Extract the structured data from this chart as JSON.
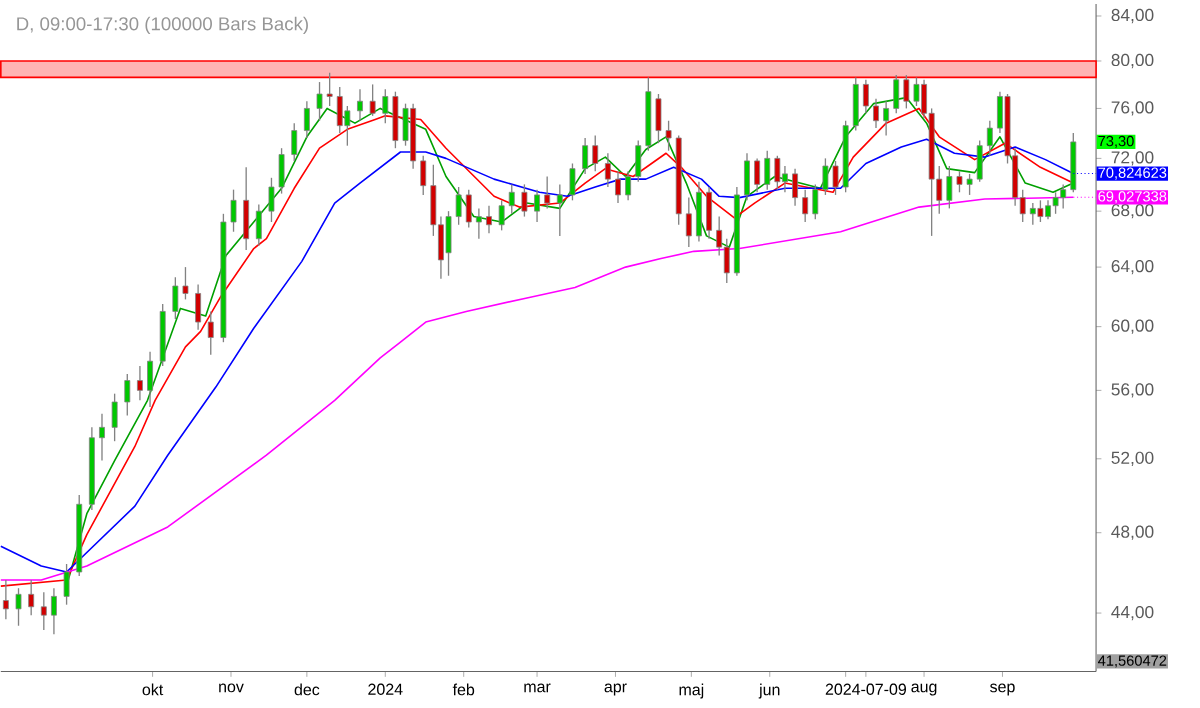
{
  "chart_data": {
    "type": "candlestick",
    "title": "D, 09:00-17:30 (100000 Bars Back)",
    "log": true,
    "x": [
      "2023-08-04",
      "2023-08-09",
      "2023-08-14",
      "2023-08-19",
      "2023-08-23",
      "2023-08-28",
      "2023-09-02",
      "2023-09-07",
      "2023-09-11",
      "2023-09-16",
      "2023-09-21",
      "2023-09-26",
      "2023-09-30",
      "2023-10-05",
      "2023-10-10",
      "2023-10-14",
      "2023-10-19",
      "2023-10-24",
      "2023-10-29",
      "2023-11-02",
      "2023-11-07",
      "2023-11-12",
      "2023-11-17",
      "2023-11-21",
      "2023-11-26",
      "2023-12-01",
      "2023-12-06",
      "2023-12-10",
      "2023-12-14",
      "2023-12-17",
      "2023-12-22",
      "2023-12-27",
      "2024-01-01",
      "2024-01-05",
      "2024-01-09",
      "2024-01-12",
      "2024-01-16",
      "2024-01-20",
      "2024-01-23",
      "2024-01-26",
      "2024-01-30",
      "2024-02-03",
      "2024-02-07",
      "2024-02-11",
      "2024-02-16",
      "2024-02-20",
      "2024-02-25",
      "2024-03-01",
      "2024-03-05",
      "2024-03-10",
      "2024-03-15",
      "2024-03-20",
      "2024-03-24",
      "2024-03-29",
      "2024-04-02",
      "2024-04-06",
      "2024-04-10",
      "2024-04-14",
      "2024-04-18",
      "2024-04-22",
      "2024-04-26",
      "2024-04-30",
      "2024-05-04",
      "2024-05-08",
      "2024-05-12",
      "2024-05-15",
      "2024-05-19",
      "2024-05-23",
      "2024-05-27",
      "2024-05-31",
      "2024-06-04",
      "2024-06-07",
      "2024-06-11",
      "2024-06-15",
      "2024-06-19",
      "2024-06-23",
      "2024-06-27",
      "2024-07-01",
      "2024-07-05",
      "2024-07-09",
      "2024-07-13",
      "2024-07-17",
      "2024-07-21",
      "2024-07-25",
      "2024-07-29",
      "2024-08-01",
      "2024-08-04",
      "2024-08-07",
      "2024-08-11",
      "2024-08-15",
      "2024-08-19",
      "2024-08-23",
      "2024-08-27",
      "2024-08-31",
      "2024-09-03",
      "2024-09-06",
      "2024-09-09",
      "2024-09-13",
      "2024-09-16",
      "2024-09-19",
      "2024-09-22",
      "2024-09-25",
      "2024-09-29"
    ],
    "ohlc": [
      [
        44.6,
        45.6,
        43.7,
        44.2
      ],
      [
        44.2,
        45.2,
        43.4,
        44.9
      ],
      [
        44.9,
        45.6,
        43.9,
        44.3
      ],
      [
        44.3,
        45.0,
        43.2,
        43.9
      ],
      [
        43.9,
        45.2,
        43.0,
        44.8
      ],
      [
        44.8,
        46.4,
        44.4,
        46.0
      ],
      [
        46.0,
        50.0,
        45.8,
        49.5
      ],
      [
        49.5,
        53.8,
        49.2,
        53.2
      ],
      [
        53.2,
        54.6,
        51.9,
        53.8
      ],
      [
        53.8,
        55.8,
        53.0,
        55.3
      ],
      [
        55.3,
        57.0,
        54.5,
        56.6
      ],
      [
        56.6,
        57.5,
        55.4,
        56.0
      ],
      [
        56.0,
        58.4,
        55.0,
        57.8
      ],
      [
        57.8,
        61.5,
        57.5,
        61.0
      ],
      [
        61.0,
        63.3,
        60.5,
        62.7
      ],
      [
        62.7,
        64.0,
        61.8,
        62.2
      ],
      [
        62.2,
        62.8,
        59.8,
        60.3
      ],
      [
        60.3,
        61.0,
        58.2,
        59.3
      ],
      [
        59.3,
        67.8,
        59.0,
        67.2
      ],
      [
        67.2,
        69.6,
        66.5,
        68.8
      ],
      [
        68.8,
        71.3,
        65.2,
        66.0
      ],
      [
        66.0,
        68.5,
        65.5,
        68.0
      ],
      [
        68.0,
        70.5,
        67.2,
        69.8
      ],
      [
        69.8,
        72.8,
        69.3,
        72.3
      ],
      [
        72.3,
        74.8,
        71.8,
        74.2
      ],
      [
        74.2,
        76.6,
        73.6,
        76.0
      ],
      [
        76.0,
        78.2,
        75.0,
        77.2
      ],
      [
        77.2,
        79.0,
        76.2,
        77.0
      ],
      [
        77.0,
        77.8,
        74.0,
        74.6
      ],
      [
        74.6,
        76.2,
        73.0,
        75.8
      ],
      [
        75.8,
        77.6,
        75.0,
        76.6
      ],
      [
        76.6,
        78.0,
        75.4,
        75.6
      ],
      [
        75.6,
        77.6,
        74.8,
        77.0
      ],
      [
        77.0,
        77.4,
        72.8,
        73.4
      ],
      [
        73.4,
        76.4,
        73.0,
        76.0
      ],
      [
        76.0,
        76.4,
        71.2,
        71.8
      ],
      [
        71.8,
        72.2,
        69.2,
        69.9
      ],
      [
        69.9,
        71.5,
        66.2,
        67.0
      ],
      [
        67.0,
        67.6,
        63.2,
        64.5
      ],
      [
        65.0,
        68.0,
        63.4,
        67.6
      ],
      [
        67.6,
        69.8,
        67.0,
        69.2
      ],
      [
        69.2,
        69.6,
        66.8,
        67.2
      ],
      [
        67.2,
        68.2,
        66.0,
        67.6
      ],
      [
        67.6,
        68.4,
        66.4,
        67.0
      ],
      [
        67.0,
        68.8,
        66.6,
        68.4
      ],
      [
        68.4,
        70.0,
        67.8,
        69.4
      ],
      [
        69.4,
        70.0,
        67.6,
        68.0
      ],
      [
        68.0,
        69.6,
        67.2,
        69.2
      ],
      [
        69.2,
        70.6,
        68.2,
        68.6
      ],
      [
        68.6,
        70.0,
        66.2,
        69.2
      ],
      [
        69.2,
        71.6,
        68.8,
        71.2
      ],
      [
        71.2,
        73.6,
        70.8,
        73.0
      ],
      [
        73.0,
        73.8,
        71.0,
        71.6
      ],
      [
        71.6,
        72.4,
        69.8,
        70.4
      ],
      [
        70.4,
        71.0,
        68.6,
        69.2
      ],
      [
        69.2,
        71.0,
        68.8,
        70.6
      ],
      [
        70.6,
        73.4,
        70.2,
        73.0
      ],
      [
        73.0,
        78.6,
        72.6,
        77.4
      ],
      [
        76.8,
        77.2,
        73.2,
        74.2
      ],
      [
        74.2,
        75.0,
        72.6,
        73.6
      ],
      [
        73.6,
        73.8,
        67.0,
        67.8
      ],
      [
        67.8,
        69.0,
        65.4,
        66.2
      ],
      [
        66.2,
        70.2,
        65.8,
        69.4
      ],
      [
        69.4,
        69.8,
        66.0,
        66.6
      ],
      [
        66.6,
        67.6,
        64.8,
        65.4
      ],
      [
        65.4,
        66.0,
        62.9,
        63.6
      ],
      [
        63.6,
        69.8,
        63.4,
        69.2
      ],
      [
        69.2,
        72.4,
        68.8,
        71.8
      ],
      [
        71.8,
        72.0,
        69.4,
        70.0
      ],
      [
        70.0,
        72.6,
        69.6,
        72.0
      ],
      [
        72.0,
        72.2,
        69.6,
        70.2
      ],
      [
        70.2,
        71.4,
        69.4,
        70.8
      ],
      [
        70.8,
        71.2,
        68.4,
        69.0
      ],
      [
        69.0,
        69.6,
        67.2,
        67.8
      ],
      [
        67.8,
        70.0,
        67.4,
        69.6
      ],
      [
        69.6,
        72.0,
        69.2,
        71.4
      ],
      [
        71.4,
        71.8,
        69.2,
        69.8
      ],
      [
        69.8,
        75.0,
        69.4,
        74.6
      ],
      [
        74.6,
        78.6,
        74.2,
        78.0
      ],
      [
        78.0,
        78.4,
        75.6,
        76.2
      ],
      [
        76.2,
        76.8,
        74.4,
        75.0
      ],
      [
        75.0,
        76.6,
        73.8,
        76.0
      ],
      [
        76.0,
        78.8,
        75.6,
        78.4
      ],
      [
        78.4,
        78.8,
        76.0,
        76.6
      ],
      [
        76.6,
        78.6,
        76.2,
        78.0
      ],
      [
        78.0,
        78.4,
        75.2,
        75.6
      ],
      [
        75.6,
        76.0,
        66.2,
        70.4
      ],
      [
        70.4,
        71.4,
        67.8,
        68.8
      ],
      [
        68.8,
        71.4,
        68.2,
        70.6
      ],
      [
        70.6,
        71.0,
        69.4,
        70.0
      ],
      [
        70.0,
        70.8,
        69.2,
        70.4
      ],
      [
        70.4,
        73.4,
        70.2,
        73.0
      ],
      [
        73.0,
        75.0,
        72.2,
        74.4
      ],
      [
        74.4,
        77.4,
        74.0,
        77.0
      ],
      [
        77.0,
        77.2,
        71.6,
        72.2
      ],
      [
        72.2,
        72.8,
        68.4,
        69.0
      ],
      [
        69.0,
        69.6,
        67.2,
        67.8
      ],
      [
        67.8,
        68.6,
        67.0,
        68.2
      ],
      [
        68.2,
        68.8,
        67.2,
        67.6
      ],
      [
        67.6,
        68.8,
        67.4,
        68.4
      ],
      [
        68.4,
        69.4,
        67.8,
        69.0
      ],
      [
        69.0,
        70.0,
        68.2,
        69.6
      ],
      [
        69.6,
        74.0,
        69.4,
        73.3
      ]
    ],
    "series": [
      {
        "type": "line",
        "color": "#00a000",
        "x": [
          "2023-08-28",
          "2023-09-05",
          "2023-09-16",
          "2023-09-29",
          "2023-10-12",
          "2023-10-22",
          "2023-10-30",
          "2023-11-10",
          "2023-11-21",
          "2023-12-01",
          "2023-12-09",
          "2023-12-20",
          "2023-12-30",
          "2024-01-17",
          "2024-01-25",
          "2024-02-05",
          "2024-02-16",
          "2024-02-26",
          "2024-03-10",
          "2024-03-20",
          "2024-03-28",
          "2024-04-05",
          "2024-04-13",
          "2024-04-21",
          "2024-04-29",
          "2024-05-07",
          "2024-05-16",
          "2024-05-23",
          "2024-06-03",
          "2024-06-21",
          "2024-07-01",
          "2024-07-12",
          "2024-07-25",
          "2024-08-02",
          "2024-08-10",
          "2024-08-21",
          "2024-08-31",
          "2024-09-10",
          "2024-09-21",
          "2024-09-29"
        ],
        "values": [
          45.3,
          49.0,
          51.9,
          55.4,
          61.2,
          60.7,
          64.8,
          67.2,
          69.7,
          73.7,
          76.0,
          74.8,
          76.0,
          74.3,
          70.6,
          67.6,
          67.2,
          68.6,
          68.2,
          71.2,
          72.1,
          70.6,
          72.7,
          73.7,
          70.1,
          66.2,
          65.4,
          69.1,
          70.6,
          69.7,
          73.7,
          76.4,
          76.9,
          74.8,
          71.2,
          70.9,
          73.7,
          70.1,
          69.4,
          70.1
        ]
      },
      {
        "type": "line",
        "color": "#ff0000",
        "x": [
          "2023-08-02",
          "2023-08-28",
          "2023-09-05",
          "2023-09-24",
          "2023-10-02",
          "2023-10-14",
          "2023-10-20",
          "2023-10-28",
          "2023-11-10",
          "2023-11-15",
          "2023-11-26",
          "2023-12-06",
          "2023-12-17",
          "2023-12-28",
          "2024-01-01",
          "2024-01-15",
          "2024-01-25",
          "2024-02-13",
          "2024-02-23",
          "2024-03-10",
          "2024-03-20",
          "2024-03-28",
          "2024-04-08",
          "2024-04-21",
          "2024-04-27",
          "2024-05-07",
          "2024-05-18",
          "2024-05-26",
          "2024-06-07",
          "2024-06-26",
          "2024-07-04",
          "2024-07-17",
          "2024-07-30",
          "2024-08-07",
          "2024-08-21",
          "2024-09-02",
          "2024-09-16",
          "2024-09-29"
        ],
        "values": [
          45.3,
          45.6,
          47.9,
          52.7,
          55.4,
          58.7,
          59.7,
          62.0,
          65.3,
          66.0,
          69.7,
          72.8,
          74.3,
          75.1,
          75.4,
          75.1,
          72.8,
          69.1,
          68.3,
          68.6,
          70.1,
          71.2,
          70.6,
          72.4,
          71.3,
          69.1,
          67.5,
          68.6,
          70.1,
          69.4,
          72.1,
          74.8,
          76.0,
          73.7,
          71.9,
          73.2,
          71.3,
          70.1
        ]
      },
      {
        "type": "line",
        "color": "#0000ff",
        "x": [
          "2023-08-02",
          "2023-08-18",
          "2023-08-28",
          "2023-09-24",
          "2023-10-07",
          "2023-10-26",
          "2023-11-10",
          "2023-11-29",
          "2023-12-12",
          "2023-12-22",
          "2024-01-07",
          "2024-01-17",
          "2024-01-25",
          "2024-02-13",
          "2024-03-02",
          "2024-03-13",
          "2024-03-24",
          "2024-04-03",
          "2024-04-13",
          "2024-04-24",
          "2024-05-05",
          "2024-05-12",
          "2024-05-20",
          "2024-06-07",
          "2024-06-29",
          "2024-07-09",
          "2024-07-23",
          "2024-08-02",
          "2024-08-13",
          "2024-08-25",
          "2024-09-06",
          "2024-09-18",
          "2024-09-29"
        ],
        "values": [
          47.3,
          46.3,
          46.0,
          49.4,
          52.2,
          56.2,
          59.9,
          64.4,
          68.6,
          70.1,
          72.5,
          72.5,
          72.0,
          70.4,
          69.4,
          69.1,
          69.8,
          70.4,
          70.4,
          71.3,
          70.4,
          69.1,
          69.0,
          69.7,
          69.7,
          71.6,
          72.9,
          73.5,
          72.4,
          72.1,
          72.9,
          71.9,
          70.824623
        ]
      },
      {
        "type": "line",
        "color": "#ff00ff",
        "x": [
          "2023-08-02",
          "2023-08-18",
          "2023-09-05",
          "2023-10-07",
          "2023-11-15",
          "2023-12-12",
          "2023-12-30",
          "2024-01-07",
          "2024-01-17",
          "2024-02-02",
          "2024-02-26",
          "2024-03-16",
          "2024-04-05",
          "2024-04-19",
          "2024-05-02",
          "2024-05-20",
          "2024-06-29",
          "2024-07-30",
          "2024-08-25",
          "2024-09-29"
        ],
        "values": [
          45.6,
          45.6,
          46.3,
          48.3,
          52.2,
          55.4,
          58.0,
          59.0,
          60.3,
          61.0,
          61.9,
          62.6,
          64.0,
          64.6,
          65.1,
          65.3,
          66.5,
          68.3,
          68.9,
          69.027338
        ]
      }
    ],
    "bands": [
      {
        "axis": "y",
        "from": 78.6,
        "to": 80.0,
        "color": "#ffb4b4"
      }
    ],
    "annotations": [
      {
        "text": "73,30",
        "y": 73.3
      },
      {
        "text": "70,824623",
        "x": "2024-09-29",
        "y": 70.824623
      },
      {
        "text": "69,027338",
        "x": "2024-09-29",
        "y": 69.027338
      },
      "41,560472"
    ],
    "xlim": [
      "2023-08-02",
      "2024-10-08"
    ],
    "xticks": [
      {
        "value": "2023-10-01",
        "label": "okt"
      },
      {
        "value": "2023-11-01",
        "label": "nov"
      },
      {
        "value": "2023-12-01",
        "label": "dec"
      },
      {
        "value": "2024-01-01",
        "label": "2024"
      },
      {
        "value": "2024-02-01",
        "label": "feb"
      },
      {
        "value": "2024-03-01",
        "label": "mar"
      },
      {
        "value": "2024-04-01",
        "label": "apr"
      },
      {
        "value": "2024-05-01",
        "label": "maj"
      },
      {
        "value": "2024-06-01",
        "label": "jun"
      },
      {
        "value": "2024-07-01",
        "label": null
      },
      {
        "value": "2024-07-09",
        "label": "2024-07-09"
      },
      {
        "value": "2024-08-01",
        "label": "aug"
      },
      {
        "value": "2024-09-01",
        "label": "sep"
      }
    ],
    "ylim": [
      41.3,
      85.1
    ],
    "yticks": [
      {
        "value": 44,
        "label": "44,00"
      },
      {
        "value": 48,
        "label": "48,00"
      },
      {
        "value": 52,
        "label": "52,00"
      },
      {
        "value": 56,
        "label": "56,00"
      },
      {
        "value": 60,
        "label": "60,00"
      },
      {
        "value": 64,
        "label": "64,00"
      },
      {
        "value": 68,
        "label": "68,00"
      },
      {
        "value": 72,
        "label": "72,00"
      },
      {
        "value": 76,
        "label": "76,00"
      },
      {
        "value": 80,
        "label": "80,00"
      },
      {
        "value": 84,
        "label": "84,00"
      }
    ]
  }
}
